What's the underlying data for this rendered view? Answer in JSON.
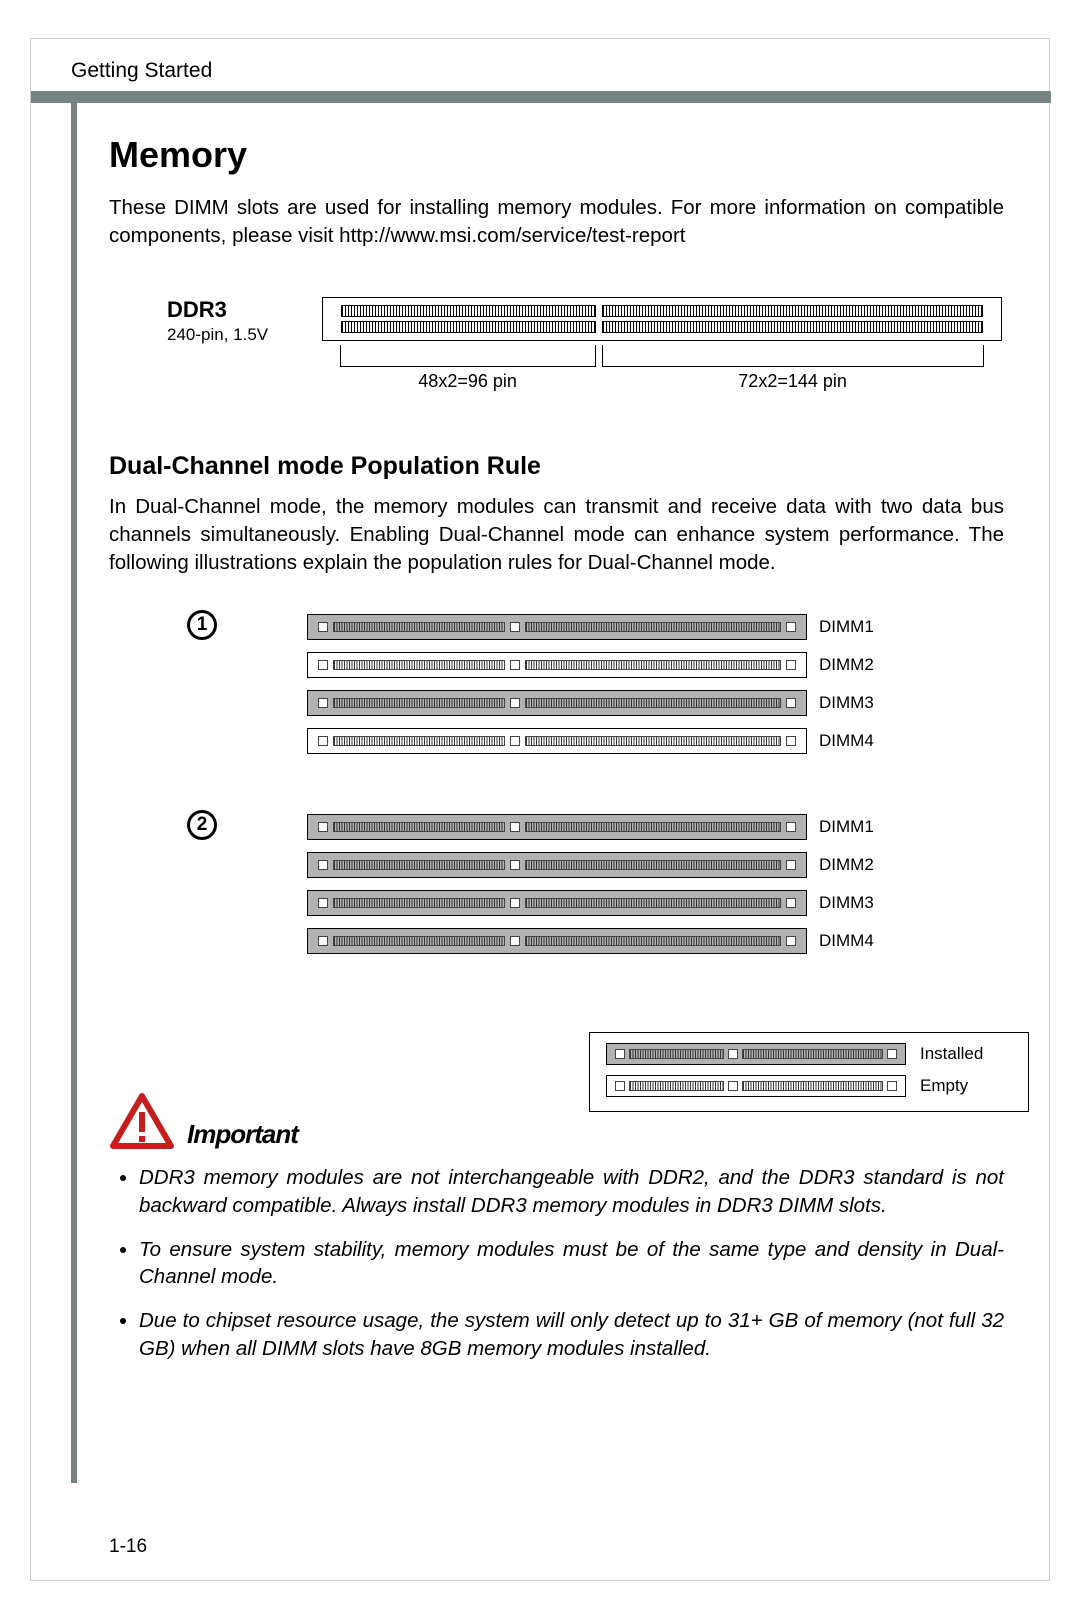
{
  "header": {
    "section": "Getting Started"
  },
  "title": "Memory",
  "intro": "These DIMM slots are used for installing memory modules. For more information on compatible components, please visit http://www.msi.com/service/test-report",
  "ddr3": {
    "label": "DDR3",
    "sub": "240-pin, 1.5V",
    "seg1_label": "48x2=96 pin",
    "seg2_label": "72x2=144  pin",
    "slot_bg": "#ffffff",
    "border": "#000000"
  },
  "subheading": "Dual-Channel mode Population Rule",
  "dual_text": "In Dual-Channel mode, the memory modules can transmit and receive data with two data bus channels simultaneously. Enabling Dual-Channel mode can enhance system performance. The following illustrations explain the population rules for Dual-Channel mode.",
  "configs": [
    {
      "num": "1",
      "slots": [
        {
          "label": "DIMM1",
          "state": "installed"
        },
        {
          "label": "DIMM2",
          "state": "empty"
        },
        {
          "label": "DIMM3",
          "state": "installed"
        },
        {
          "label": "DIMM4",
          "state": "empty"
        }
      ]
    },
    {
      "num": "2",
      "slots": [
        {
          "label": "DIMM1",
          "state": "installed"
        },
        {
          "label": "DIMM2",
          "state": "installed"
        },
        {
          "label": "DIMM3",
          "state": "installed"
        },
        {
          "label": "DIMM4",
          "state": "installed"
        }
      ]
    }
  ],
  "legend": {
    "installed": "Installed",
    "empty": "Empty"
  },
  "important": {
    "label": "Important",
    "warn_color": "#c41e1e",
    "items": [
      "DDR3 memory modules are not interchangeable with DDR2, and the DDR3 standard is not backward compatible. Always install DDR3 memory modules in DDR3 DIMM slots.",
      "To ensure system stability, memory modules must be of the same type and density in Dual-Channel mode.",
      "Due to chipset resource usage, the system will only detect up to 31+ GB of memory (not full 32 GB) when all DIMM slots have 8GB memory modules installed."
    ]
  },
  "page_num": "1-16",
  "colors": {
    "rule": "#768484",
    "installed_bg": "#b2b2b2",
    "empty_bg": "#ffffff"
  }
}
